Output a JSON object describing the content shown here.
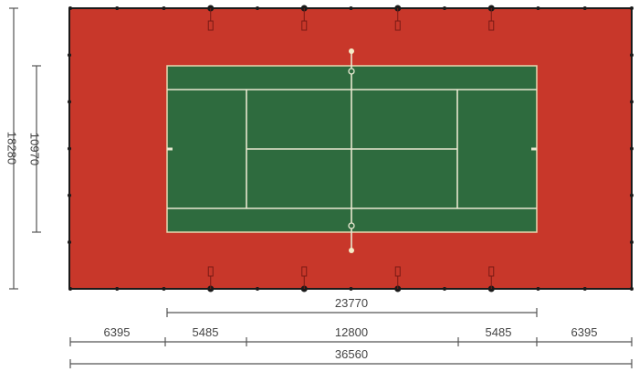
{
  "colors": {
    "surround": "#c8372a",
    "court": "#2e6b3e",
    "lines": "#e8e8d0",
    "fence": "#1a1a1a",
    "dimension": "#555555"
  },
  "dimensions": {
    "total_width": "18280",
    "court_width": "10970",
    "court_length": "23770",
    "segments": [
      "6395",
      "5485",
      "12800",
      "5485",
      "6395"
    ],
    "total_length": "36560"
  }
}
